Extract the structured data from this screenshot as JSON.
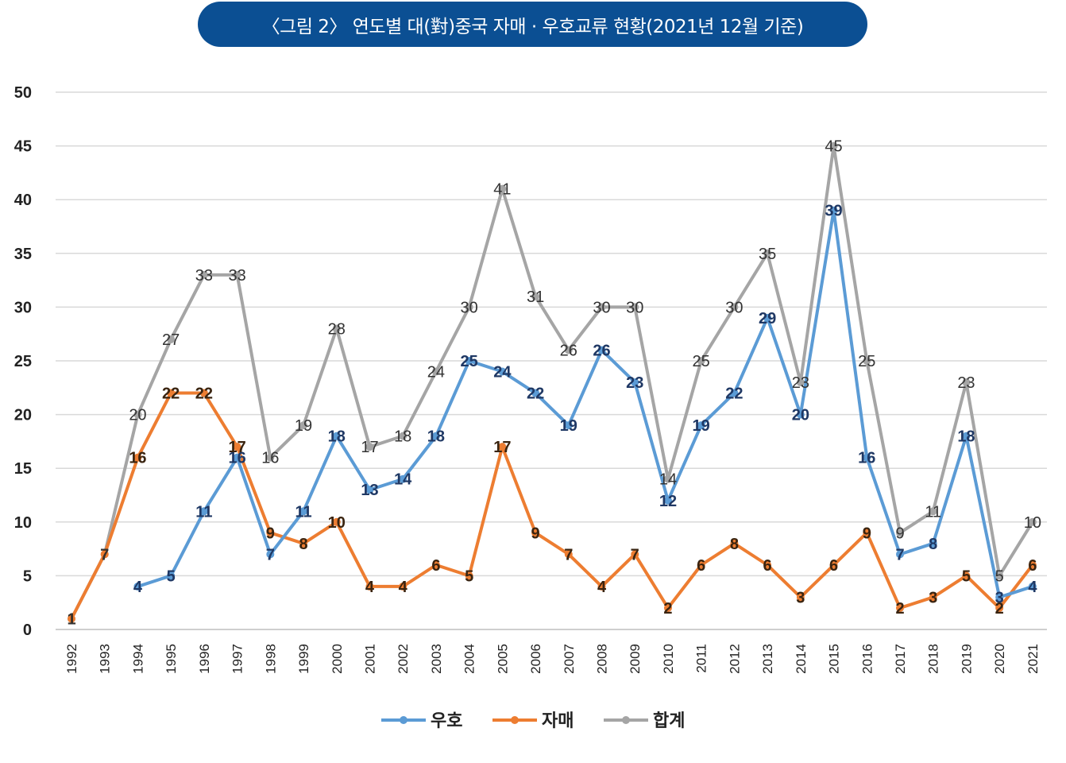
{
  "title": "〈그림 2〉 연도별 대(對)중국 자매 · 우호교류 현황(2021년 12월 기준)",
  "chart_data": {
    "type": "line",
    "title": "〈그림 2〉 연도별 대(對)중국 자매 · 우호교류 현황(2021년 12월 기준)",
    "xlabel": "",
    "ylabel": "",
    "ylim": [
      0,
      50
    ],
    "yticks": [
      0,
      5,
      10,
      15,
      20,
      25,
      30,
      35,
      40,
      45,
      50
    ],
    "grid": true,
    "legend_position": "bottom",
    "categories": [
      "1992",
      "1993",
      "1994",
      "1995",
      "1996",
      "1997",
      "1998",
      "1999",
      "2000",
      "2001",
      "2002",
      "2003",
      "2004",
      "2005",
      "2006",
      "2007",
      "2008",
      "2009",
      "2010",
      "2011",
      "2012",
      "2013",
      "2014",
      "2015",
      "2016",
      "2017",
      "2018",
      "2019",
      "2020",
      "2021"
    ],
    "series": [
      {
        "name": "우호",
        "color": "#5b9bd5",
        "values": [
          null,
          null,
          4,
          5,
          11,
          16,
          7,
          11,
          18,
          13,
          14,
          18,
          25,
          24,
          22,
          19,
          26,
          23,
          12,
          19,
          22,
          29,
          20,
          39,
          16,
          7,
          8,
          18,
          3,
          4
        ]
      },
      {
        "name": "자매",
        "color": "#ed7d31",
        "values": [
          1,
          7,
          16,
          22,
          22,
          17,
          9,
          8,
          10,
          4,
          4,
          6,
          5,
          17,
          9,
          7,
          4,
          7,
          2,
          6,
          8,
          6,
          3,
          6,
          9,
          2,
          3,
          5,
          2,
          6
        ]
      },
      {
        "name": "합계",
        "color": "#a5a5a5",
        "values": [
          1,
          7,
          20,
          27,
          33,
          33,
          16,
          19,
          28,
          17,
          18,
          24,
          30,
          41,
          31,
          26,
          30,
          30,
          14,
          25,
          30,
          35,
          23,
          45,
          25,
          9,
          11,
          23,
          5,
          10
        ]
      }
    ]
  }
}
